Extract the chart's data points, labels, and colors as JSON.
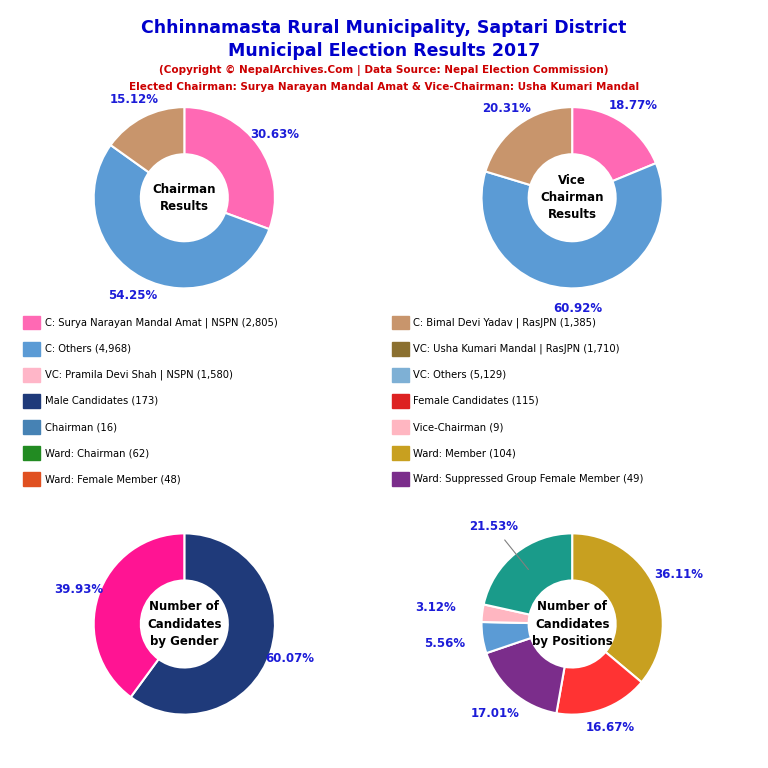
{
  "title_line1": "Chhinnamasta Rural Municipality, Saptari District",
  "title_line2": "Municipal Election Results 2017",
  "title_color": "#0000CC",
  "subtitle1": "(Copyright © NepalArchives.Com | Data Source: Nepal Election Commission)",
  "subtitle2": "Elected Chairman: Surya Narayan Mandal Amat & Vice-Chairman: Usha Kumari Mandal",
  "subtitle_color": "#CC0000",
  "chairman_values": [
    30.63,
    54.25,
    15.12
  ],
  "chairman_colors": [
    "#FF69B4",
    "#5B9BD5",
    "#C8956C"
  ],
  "chairman_labels": [
    "30.63%",
    "54.25%",
    "15.12%"
  ],
  "chairman_center_text": "Chairman\nResults",
  "vice_values": [
    18.77,
    60.92,
    20.31
  ],
  "vice_colors": [
    "#FF69B4",
    "#5B9BD5",
    "#C8956C"
  ],
  "vice_labels": [
    "18.77%",
    "60.92%",
    "20.31%"
  ],
  "vice_center_text": "Vice\nChairman\nResults",
  "gender_values": [
    60.07,
    39.93
  ],
  "gender_colors": [
    "#1F3A7A",
    "#FF1493"
  ],
  "gender_labels": [
    "60.07%",
    "39.93%"
  ],
  "gender_center_text": "Number of\nCandidates\nby Gender",
  "positions_values": [
    36.11,
    16.67,
    17.01,
    5.56,
    3.12,
    21.53
  ],
  "positions_colors": [
    "#C8A020",
    "#FF3333",
    "#7B2D8B",
    "#5B9BD5",
    "#FFB6C1",
    "#1A9B8A"
  ],
  "positions_labels": [
    "36.11%",
    "16.67%",
    "17.01%",
    "5.56%",
    "3.12%",
    "21.53%"
  ],
  "positions_center_text": "Number of\nCandidates\nby Positions",
  "legend_items": [
    {
      "label": "C: Surya Narayan Mandal Amat | NSPN (2,805)",
      "color": "#FF69B4"
    },
    {
      "label": "C: Others (4,968)",
      "color": "#5B9BD5"
    },
    {
      "label": "VC: Pramila Devi Shah | NSPN (1,580)",
      "color": "#FFB6C8"
    },
    {
      "label": "Male Candidates (173)",
      "color": "#1F3A7A"
    },
    {
      "label": "Chairman (16)",
      "color": "#4682B4"
    },
    {
      "label": "Ward: Chairman (62)",
      "color": "#228B22"
    },
    {
      "label": "Ward: Female Member (48)",
      "color": "#E05020"
    },
    {
      "label": "C: Bimal Devi Yadav | RasJPN (1,385)",
      "color": "#C8956C"
    },
    {
      "label": "VC: Usha Kumari Mandal | RasJPN (1,710)",
      "color": "#8B7030"
    },
    {
      "label": "VC: Others (5,129)",
      "color": "#7EB0D5"
    },
    {
      "label": "Female Candidates (115)",
      "color": "#DD2222"
    },
    {
      "label": "Vice-Chairman (9)",
      "color": "#FFB6C1"
    },
    {
      "label": "Ward: Member (104)",
      "color": "#C8A020"
    },
    {
      "label": "Ward: Suppressed Group Female Member (49)",
      "color": "#7B2D8B"
    }
  ]
}
